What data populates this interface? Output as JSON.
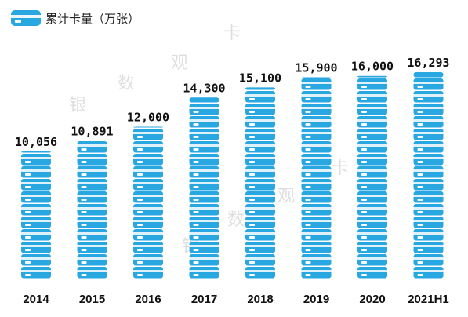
{
  "legend": {
    "label": "累计卡量（万张）"
  },
  "watermarks": [
    "银",
    "数",
    "观",
    "卡",
    "银",
    "数",
    "观",
    "卡"
  ],
  "colors": {
    "card": "#29A7E1",
    "card_stripe": "#ffffff",
    "value_label": "#111111",
    "axis_label": "#111111"
  },
  "chart_data": {
    "type": "bar",
    "title": "",
    "xlabel": "",
    "ylabel": "累计卡量（万张）",
    "categories": [
      "2014",
      "2015",
      "2016",
      "2017",
      "2018",
      "2019",
      "2020",
      "2021H1"
    ],
    "values": [
      10056,
      10891,
      12000,
      14300,
      15100,
      15900,
      16000,
      16293
    ],
    "value_labels": [
      "10,056",
      "10,891",
      "12,000",
      "14,300",
      "15,100",
      "15,900",
      "16,000",
      "16,293"
    ],
    "series": [
      {
        "name": "累计卡量（万张）",
        "values": [
          10056,
          10891,
          12000,
          14300,
          15100,
          15900,
          16000,
          16293
        ]
      }
    ],
    "legend_position": "top-left",
    "grid": false
  }
}
